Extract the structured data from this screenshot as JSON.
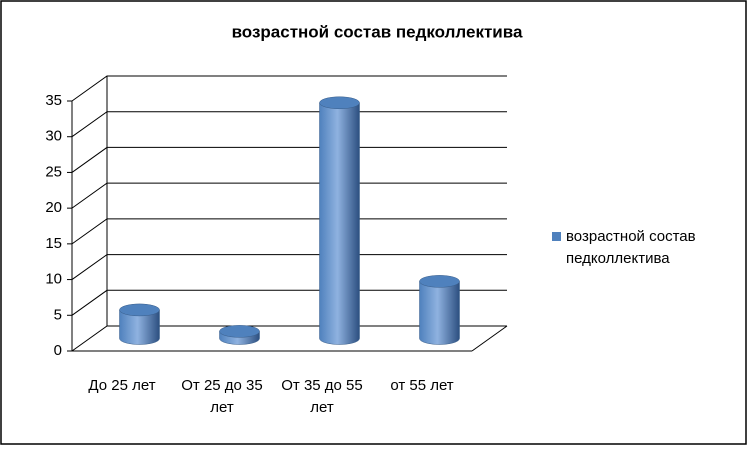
{
  "chart_data": {
    "type": "bar",
    "title": "возрастной состав педколлектива",
    "categories": [
      "До 25 лет",
      "От 25 до 35 лет",
      "От 35 до 55 лет",
      "от 55 лет"
    ],
    "series": [
      {
        "name": "возрастной состав педколлектива",
        "color": "#4f81bd",
        "values": [
          4,
          1,
          33,
          8
        ]
      }
    ],
    "ylim": [
      0,
      35
    ],
    "yticks": [
      0,
      5,
      10,
      15,
      20,
      25,
      30,
      35
    ],
    "grid": true,
    "legend": "right"
  }
}
